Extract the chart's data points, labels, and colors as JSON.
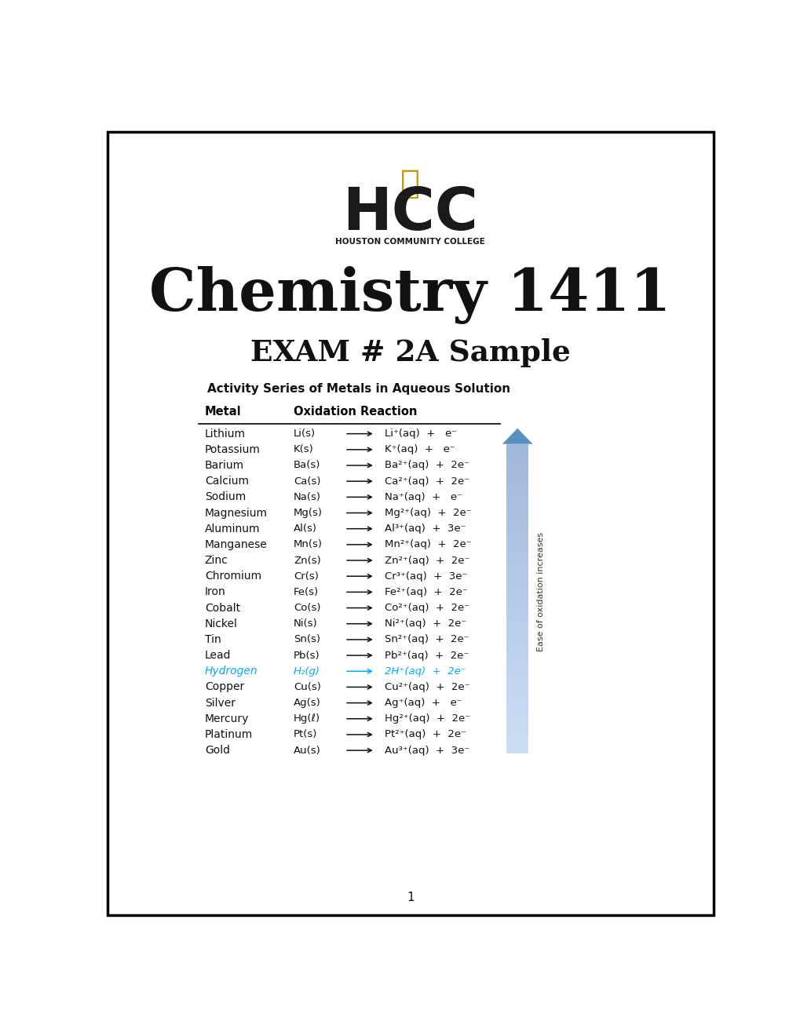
{
  "title_main": "Chemistry 1411",
  "title_sub": "EXAM # 2A Sample",
  "table_title": "Activity Series of Metals in Aqueous Solution",
  "col1_header": "Metal",
  "col2_header": "Oxidation Reaction",
  "page_num": "1",
  "bg_color": "#ffffff",
  "border_color": "#000000",
  "metals": [
    "Lithium",
    "Potassium",
    "Barium",
    "Calcium",
    "Sodium",
    "Magnesium",
    "Aluminum",
    "Manganese",
    "Zinc",
    "Chromium",
    "Iron",
    "Cobalt",
    "Nickel",
    "Tin",
    "Lead",
    "Hydrogen",
    "Copper",
    "Silver",
    "Mercury",
    "Platinum",
    "Gold"
  ],
  "formulas_left": [
    "Li(s)",
    "K(s)",
    "Ba(s)",
    "Ca(s)",
    "Na(s)",
    "Mg(s)",
    "Al(s)",
    "Mn(s)",
    "Zn(s)",
    "Cr(s)",
    "Fe(s)",
    "Co(s)",
    "Ni(s)",
    "Sn(s)",
    "Pb(s)",
    "H₂(g)",
    "Cu(s)",
    "Ag(s)",
    "Hg(ℓ)",
    "Pt(s)",
    "Au(s)"
  ],
  "formulas_right": [
    "Li⁺(aq)  +   e⁻",
    "K⁺(aq)  +   e⁻",
    "Ba²⁺(aq)  +  2e⁻",
    "Ca²⁺(aq)  +  2e⁻",
    "Na⁺(aq)  +   e⁻",
    "Mg²⁺(aq)  +  2e⁻",
    "Al³⁺(aq)  +  3e⁻",
    "Mn²⁺(aq)  +  2e⁻",
    "Zn²⁺(aq)  +  2e⁻",
    "Cr³⁺(aq)  +  3e⁻",
    "Fe²⁺(aq)  +  2e⁻",
    "Co²⁺(aq)  +  2e⁻",
    "Ni²⁺(aq)  +  2e⁻",
    "Sn²⁺(aq)  +  2e⁻",
    "Pb²⁺(aq)  +  2e⁻",
    "2H⁺(aq)  +  2e⁻",
    "Cu²⁺(aq)  +  2e⁻",
    "Ag⁺(aq)  +   e⁻",
    "Hg²⁺(aq)  +  2e⁻",
    "Pt²⁺(aq)  +  2e⁻",
    "Au³⁺(aq)  +  3e⁻"
  ],
  "hydrogen_index": 15,
  "hydrogen_color": "#00aaff",
  "arrow_fill_color": "#8ab4d8",
  "arrow_label": "Ease of oxidation increases",
  "hcc_color": "#1a1a1a",
  "hcc_gold": "#c8960c",
  "subtitle_color": "#1a1a1a"
}
